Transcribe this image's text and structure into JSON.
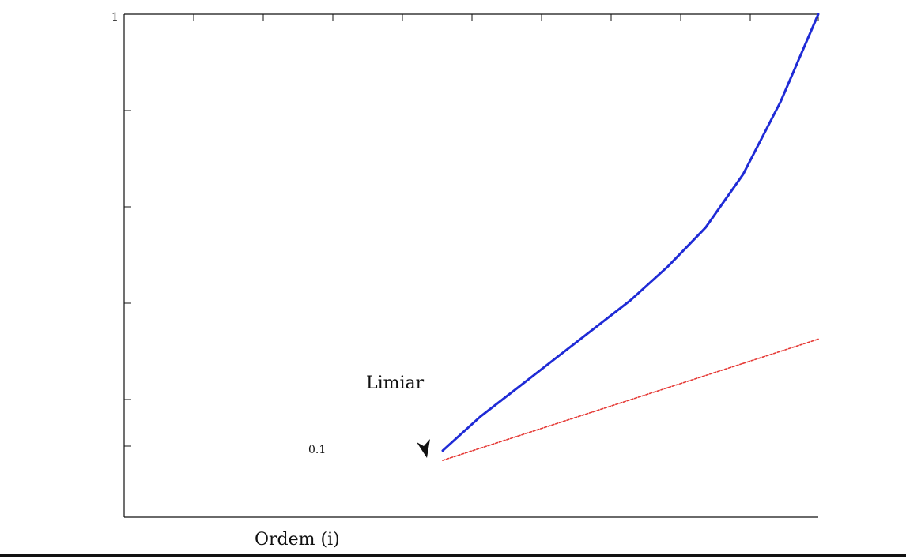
{
  "chart_data": {
    "type": "line",
    "title": "",
    "xlabel": "Ordem (i)",
    "ylabel": "",
    "y_tick_labels": [
      "1",
      "0.1"
    ],
    "annotation": "Limiar",
    "colors": {
      "curve": "#1f2bd6",
      "dashed": "#e53935",
      "axis": "#111111",
      "arrow": "#111111"
    },
    "series": [
      {
        "style": "solid",
        "x": [
          0.0,
          0.1,
          0.2,
          0.3,
          0.4,
          0.5,
          0.6,
          0.7,
          0.8,
          0.9,
          1.0
        ],
        "y": [
          0.1,
          0.17,
          0.23,
          0.29,
          0.35,
          0.41,
          0.48,
          0.56,
          0.67,
          0.82,
          1.0
        ]
      },
      {
        "style": "dashed",
        "x": [
          0.0,
          0.2,
          0.4,
          0.6,
          0.8,
          1.0
        ],
        "y": [
          0.08,
          0.13,
          0.18,
          0.23,
          0.28,
          0.33
        ]
      }
    ]
  }
}
